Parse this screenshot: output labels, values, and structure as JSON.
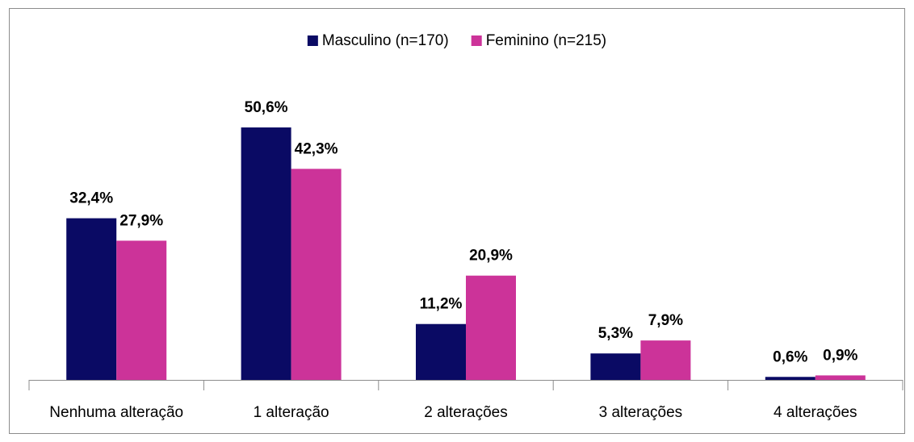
{
  "chart_data": {
    "type": "bar",
    "categories": [
      "Nenhuma alteração",
      "1 alteração",
      "2 alterações",
      "3 alterações",
      "4 alterações"
    ],
    "series": [
      {
        "name": "Masculino (n=170)",
        "color": "#0a0a64",
        "values": [
          32.4,
          50.6,
          11.2,
          5.3,
          0.6
        ],
        "value_labels": [
          "32,4%",
          "50,6%",
          "11,2%",
          "5,3%",
          "0,6%"
        ]
      },
      {
        "name": "Feminino (n=215)",
        "color": "#cc3399",
        "values": [
          27.9,
          42.3,
          20.9,
          7.9,
          0.9
        ],
        "value_labels": [
          "27,9%",
          "42,3%",
          "20,9%",
          "7,9%",
          "0,9%"
        ]
      }
    ],
    "legend": "top"
  }
}
